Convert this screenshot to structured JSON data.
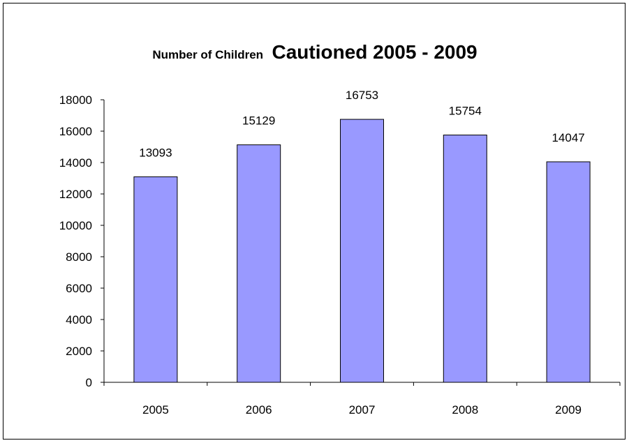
{
  "chart_data": {
    "type": "bar",
    "title_part1": "Number of Children",
    "title_part2": "Cautioned 2005 - 2009",
    "categories": [
      "2005",
      "2006",
      "2007",
      "2008",
      "2009"
    ],
    "values": [
      13093,
      15129,
      16753,
      15754,
      14047
    ],
    "data_labels": [
      "13093",
      "15129",
      "16753",
      "15754",
      "14047"
    ],
    "ylim": [
      0,
      18000
    ],
    "yticks": [
      "0",
      "2000",
      "4000",
      "6000",
      "8000",
      "10000",
      "12000",
      "14000",
      "16000",
      "18000"
    ],
    "grid": false,
    "legend": "none",
    "bar_color": "#9999ff",
    "bar_edge_color": "#000000"
  }
}
